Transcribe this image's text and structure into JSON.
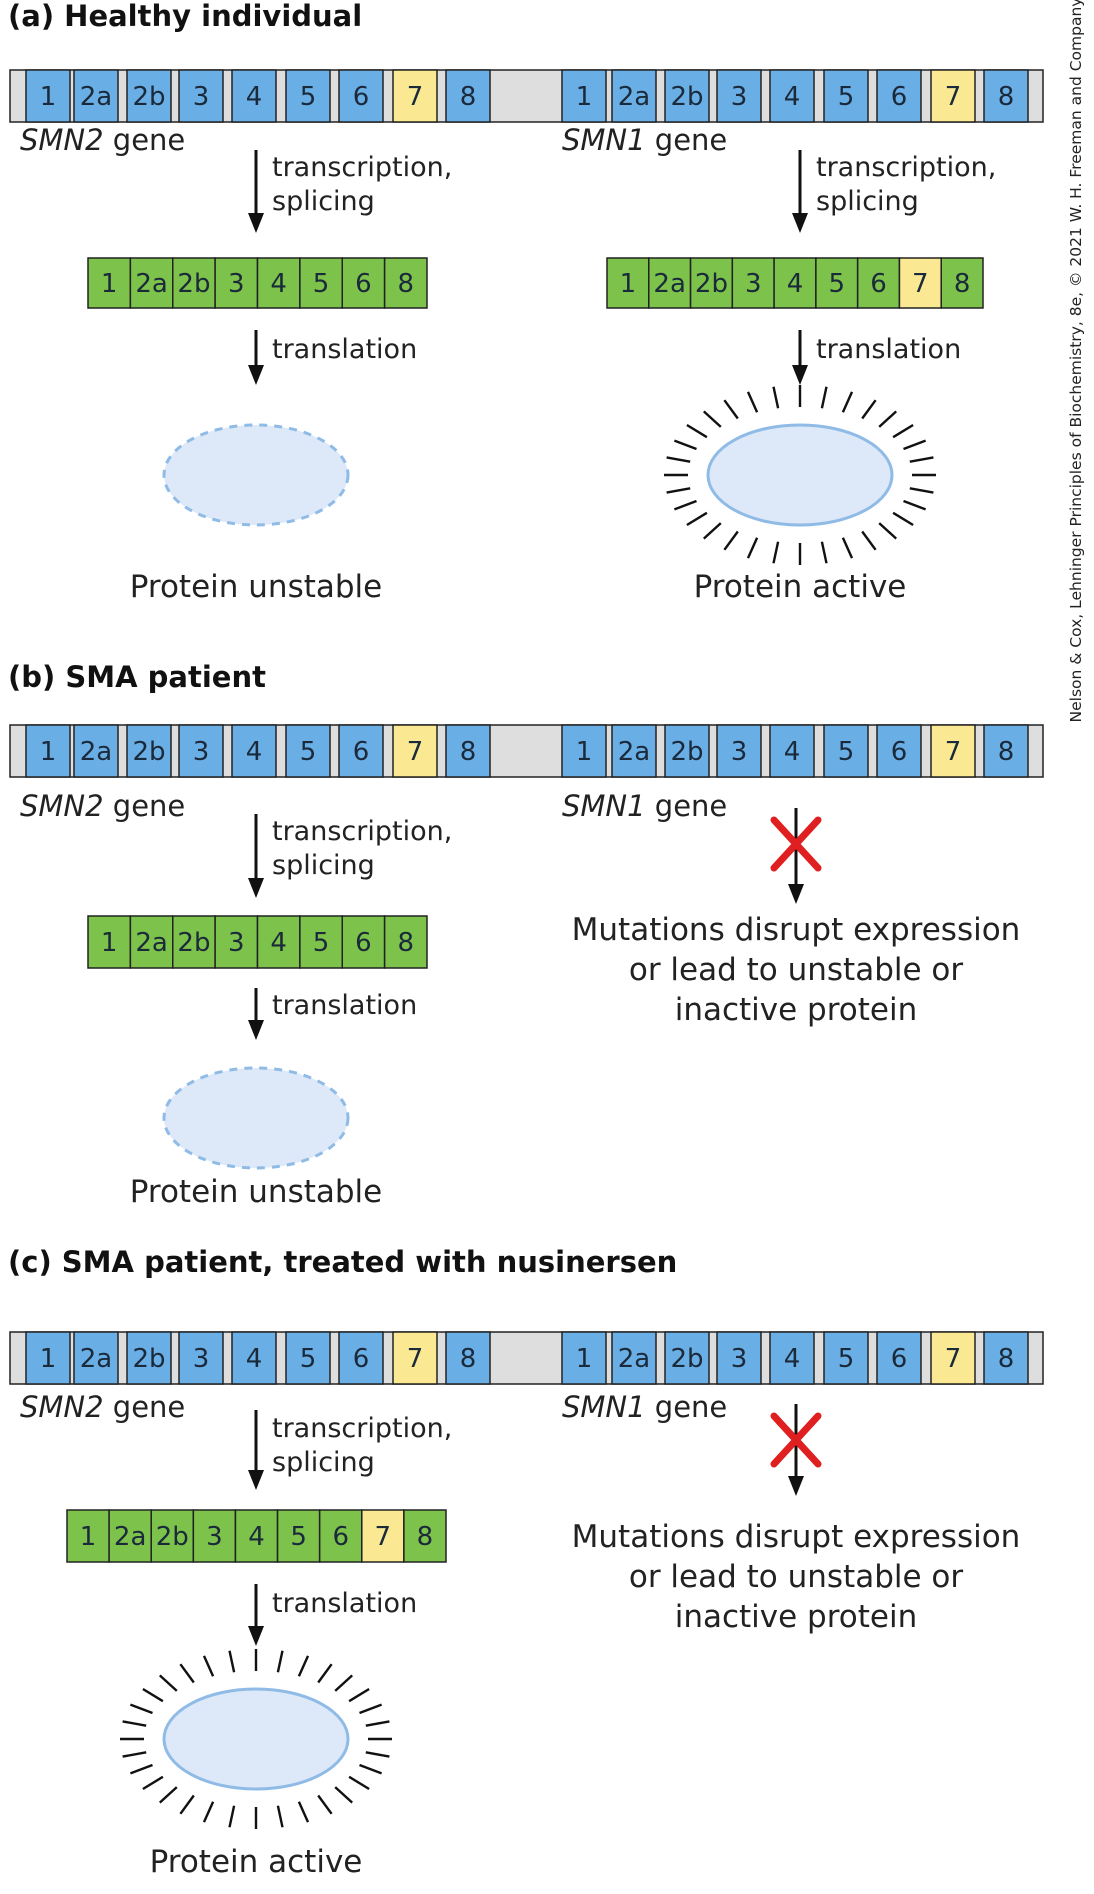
{
  "colors": {
    "gene_bar": "#dedede",
    "gene_exon": "#6aaee6",
    "mrna_exon": "#7dc24b",
    "exon7": "#fbe892",
    "outline": "#222222",
    "protein_fill": "#dde9f8",
    "protein_stroke": "#8fbbe6",
    "x_mark": "#e02020"
  },
  "icons": [
    "red-x-block-icon",
    "protein-active-rays-icon",
    "down-arrow-icon"
  ],
  "credit": "Nelson & Cox, Lehninger Principles of Biochemistry, 8e, © 2021 W. H. Freeman and Company",
  "sections": [
    {
      "title": "(a) Healthy individual",
      "genes": [
        {
          "label": "SMN2 gene",
          "exons": [
            "1",
            "2a",
            "2b",
            "3",
            "4",
            "5",
            "6",
            "7",
            "8"
          ]
        },
        {
          "label": "SMN1 gene",
          "exons": [
            "1",
            "2a",
            "2b",
            "3",
            "4",
            "5",
            "6",
            "7",
            "8"
          ]
        }
      ],
      "columns": [
        {
          "step1": [
            "transcription,",
            "splicing"
          ],
          "mrna": [
            "1",
            "2a",
            "2b",
            "3",
            "4",
            "5",
            "6",
            "8"
          ],
          "step2": "translation",
          "protein": "unstable",
          "result": "Protein unstable"
        },
        {
          "step1": [
            "transcription,",
            "splicing"
          ],
          "mrna": [
            "1",
            "2a",
            "2b",
            "3",
            "4",
            "5",
            "6",
            "7",
            "8"
          ],
          "step2": "translation",
          "protein": "active",
          "result": "Protein active"
        }
      ]
    },
    {
      "title": "(b) SMA patient",
      "genes": [
        {
          "label": "SMN2 gene",
          "exons": [
            "1",
            "2a",
            "2b",
            "3",
            "4",
            "5",
            "6",
            "7",
            "8"
          ]
        },
        {
          "label": "SMN1 gene",
          "exons": [
            "1",
            "2a",
            "2b",
            "3",
            "4",
            "5",
            "6",
            "7",
            "8"
          ]
        }
      ],
      "columns": [
        {
          "step1": [
            "transcription,",
            "splicing"
          ],
          "mrna": [
            "1",
            "2a",
            "2b",
            "3",
            "4",
            "5",
            "6",
            "8"
          ],
          "step2": "translation",
          "protein": "unstable",
          "result": "Protein unstable"
        },
        {
          "blocked": true,
          "result_lines": [
            "Mutations disrupt expression",
            "or lead to unstable or",
            "inactive protein"
          ]
        }
      ]
    },
    {
      "title": "(c) SMA patient, treated with nusinersen",
      "genes": [
        {
          "label": "SMN2 gene",
          "exons": [
            "1",
            "2a",
            "2b",
            "3",
            "4",
            "5",
            "6",
            "7",
            "8"
          ]
        },
        {
          "label": "SMN1 gene",
          "exons": [
            "1",
            "2a",
            "2b",
            "3",
            "4",
            "5",
            "6",
            "7",
            "8"
          ]
        }
      ],
      "columns": [
        {
          "step1": [
            "transcription,",
            "splicing"
          ],
          "mrna": [
            "1",
            "2a",
            "2b",
            "3",
            "4",
            "5",
            "6",
            "7",
            "8"
          ],
          "step2": "translation",
          "protein": "active",
          "result": "Protein active"
        },
        {
          "blocked": true,
          "result_lines": [
            "Mutations disrupt expression",
            "or lead to unstable or",
            "inactive protein"
          ]
        }
      ]
    }
  ]
}
